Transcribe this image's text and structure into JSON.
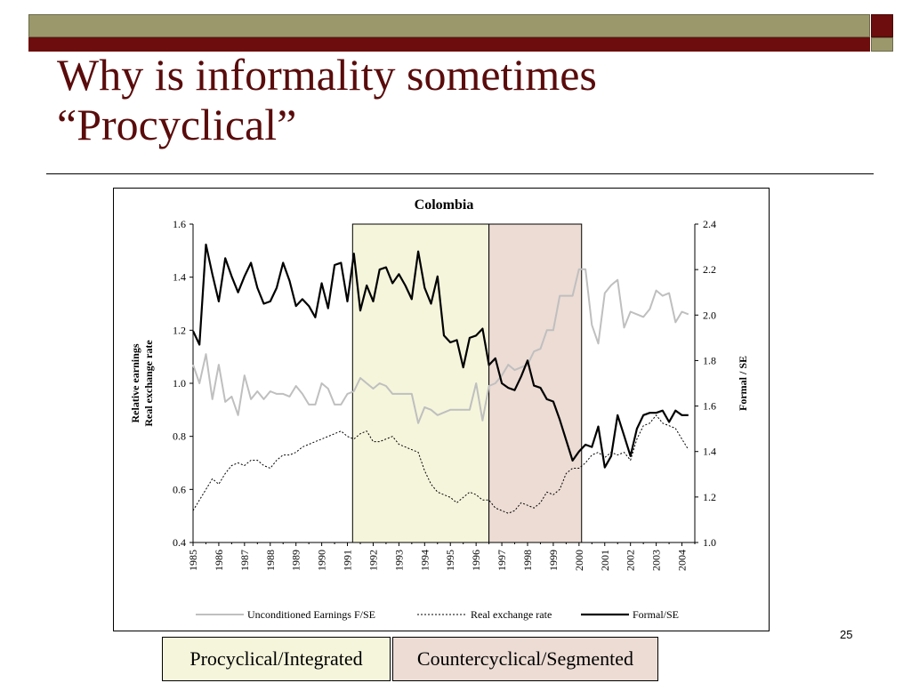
{
  "slide": {
    "title_line1": "Why is informality sometimes",
    "title_line2": "“Procyclical”",
    "page_number": "25",
    "box_labels": [
      "Procyclical/Integrated",
      "Countercyclical/Segmented"
    ]
  },
  "colors": {
    "title": "#5a0b0b",
    "band_olive": "#9b996c",
    "band_red": "#6d0d0d",
    "procyclical_shade": "#f5f5dc",
    "countercyclical_shade": "#ecdcd4",
    "earnings_line": "#bfbfbf",
    "exchange_line": "#000000",
    "formal_line": "#000000"
  },
  "chart_data": {
    "type": "line",
    "title": "Colombia",
    "ylabel_left": [
      "Relative earnings",
      "Real exchange rate"
    ],
    "ylabel_right": "Formal / SE",
    "ylim_left": [
      0.4,
      1.6
    ],
    "ylim_right": [
      1.0,
      2.4
    ],
    "yticks_left": [
      "0.4",
      "0.6",
      "0.8",
      "1.0",
      "1.2",
      "1.4",
      "1.6"
    ],
    "yticks_right": [
      "1.0",
      "1.2",
      "1.4",
      "1.6",
      "1.8",
      "2.0",
      "2.2",
      "2.4"
    ],
    "x_ticks": [
      "1985",
      "1986",
      "1987",
      "1988",
      "1989",
      "1990",
      "1991",
      "1992",
      "1993",
      "1994",
      "1995",
      "1996",
      "1997",
      "1998",
      "1999",
      "2000",
      "2001",
      "2002",
      "2003",
      "2004"
    ],
    "x_range": [
      1985.0,
      2004.5
    ],
    "legend_position": "bottom",
    "shaded_regions": [
      {
        "label": "Procyclical/Integrated",
        "start": 1991.2,
        "end": 1996.5
      },
      {
        "label": "Countercyclical/Segmented",
        "start": 1996.5,
        "end": 2000.1
      }
    ],
    "series": [
      {
        "name": "Unconditioned Earnings F/SE",
        "axis": "left",
        "style": "gray",
        "x": [
          1985.0,
          1985.25,
          1985.5,
          1985.75,
          1986.0,
          1986.25,
          1986.5,
          1986.75,
          1987.0,
          1987.25,
          1987.5,
          1987.75,
          1988.0,
          1988.25,
          1988.5,
          1988.75,
          1989.0,
          1989.25,
          1989.5,
          1989.75,
          1990.0,
          1990.25,
          1990.5,
          1990.75,
          1991.0,
          1991.25,
          1991.5,
          1991.75,
          1992.0,
          1992.25,
          1992.5,
          1992.75,
          1993.0,
          1993.25,
          1993.5,
          1993.75,
          1994.0,
          1994.25,
          1994.5,
          1994.75,
          1995.0,
          1995.25,
          1995.5,
          1995.75,
          1996.0,
          1996.25,
          1996.5,
          1996.75,
          1997.0,
          1997.25,
          1997.5,
          1997.75,
          1998.0,
          1998.25,
          1998.5,
          1998.75,
          1999.0,
          1999.25,
          1999.5,
          1999.75,
          2000.0,
          2000.25,
          2000.5,
          2000.75,
          2001.0,
          2001.25,
          2001.5,
          2001.75,
          2002.0,
          2002.25,
          2002.5,
          2002.75,
          2003.0,
          2003.25,
          2003.5,
          2003.75,
          2004.0,
          2004.25
        ],
        "values": [
          1.07,
          1.0,
          1.11,
          0.94,
          1.07,
          0.93,
          0.95,
          0.88,
          1.03,
          0.94,
          0.97,
          0.94,
          0.97,
          0.96,
          0.96,
          0.95,
          0.99,
          0.96,
          0.92,
          0.92,
          1.0,
          0.98,
          0.92,
          0.92,
          0.96,
          0.97,
          1.02,
          1.0,
          0.98,
          1.0,
          0.99,
          0.96,
          0.96,
          0.96,
          0.96,
          0.85,
          0.91,
          0.9,
          0.88,
          0.89,
          0.9,
          0.9,
          0.9,
          0.9,
          1.0,
          0.86,
          0.99,
          1.0,
          1.03,
          1.07,
          1.05,
          1.06,
          1.07,
          1.12,
          1.13,
          1.2,
          1.2,
          1.33,
          1.33,
          1.33,
          1.43,
          1.43,
          1.22,
          1.15,
          1.34,
          1.37,
          1.39,
          1.21,
          1.27,
          1.26,
          1.25,
          1.28,
          1.35,
          1.33,
          1.34,
          1.23,
          1.27,
          1.26
        ]
      },
      {
        "name": "Real exchange rate",
        "axis": "left",
        "style": "dotted",
        "x": [
          1985.0,
          1985.25,
          1985.5,
          1985.75,
          1986.0,
          1986.25,
          1986.5,
          1986.75,
          1987.0,
          1987.25,
          1987.5,
          1987.75,
          1988.0,
          1988.25,
          1988.5,
          1988.75,
          1989.0,
          1989.25,
          1989.5,
          1989.75,
          1990.0,
          1990.25,
          1990.5,
          1990.75,
          1991.0,
          1991.25,
          1991.5,
          1991.75,
          1992.0,
          1992.25,
          1992.5,
          1992.75,
          1993.0,
          1993.25,
          1993.5,
          1993.75,
          1994.0,
          1994.25,
          1994.5,
          1994.75,
          1995.0,
          1995.25,
          1995.5,
          1995.75,
          1996.0,
          1996.25,
          1996.5,
          1996.75,
          1997.0,
          1997.25,
          1997.5,
          1997.75,
          1998.0,
          1998.25,
          1998.5,
          1998.75,
          1999.0,
          1999.25,
          1999.5,
          1999.75,
          2000.0,
          2000.25,
          2000.5,
          2000.75,
          2001.0,
          2001.25,
          2001.5,
          2001.75,
          2002.0,
          2002.25,
          2002.5,
          2002.75,
          2003.0,
          2003.25,
          2003.5,
          2003.75,
          2004.0,
          2004.25
        ],
        "values": [
          0.52,
          0.56,
          0.6,
          0.64,
          0.62,
          0.66,
          0.69,
          0.7,
          0.69,
          0.71,
          0.71,
          0.69,
          0.68,
          0.71,
          0.73,
          0.73,
          0.74,
          0.76,
          0.77,
          0.78,
          0.79,
          0.8,
          0.81,
          0.82,
          0.8,
          0.79,
          0.81,
          0.82,
          0.78,
          0.78,
          0.79,
          0.8,
          0.77,
          0.76,
          0.75,
          0.74,
          0.67,
          0.62,
          0.59,
          0.58,
          0.57,
          0.55,
          0.57,
          0.59,
          0.58,
          0.56,
          0.56,
          0.53,
          0.52,
          0.51,
          0.52,
          0.55,
          0.54,
          0.53,
          0.55,
          0.59,
          0.58,
          0.6,
          0.66,
          0.68,
          0.68,
          0.7,
          0.73,
          0.74,
          0.72,
          0.74,
          0.73,
          0.74,
          0.71,
          0.79,
          0.84,
          0.85,
          0.88,
          0.85,
          0.84,
          0.83,
          0.79,
          0.75
        ]
      },
      {
        "name": "Formal/SE",
        "axis": "right",
        "style": "black",
        "x": [
          1985.0,
          1985.25,
          1985.5,
          1985.75,
          1986.0,
          1986.25,
          1986.5,
          1986.75,
          1987.0,
          1987.25,
          1987.5,
          1987.75,
          1988.0,
          1988.25,
          1988.5,
          1988.75,
          1989.0,
          1989.25,
          1989.5,
          1989.75,
          1990.0,
          1990.25,
          1990.5,
          1990.75,
          1991.0,
          1991.25,
          1991.5,
          1991.75,
          1992.0,
          1992.25,
          1992.5,
          1992.75,
          1993.0,
          1993.25,
          1993.5,
          1993.75,
          1994.0,
          1994.25,
          1994.5,
          1994.75,
          1995.0,
          1995.25,
          1995.5,
          1995.75,
          1996.0,
          1996.25,
          1996.5,
          1996.75,
          1997.0,
          1997.25,
          1997.5,
          1997.75,
          1998.0,
          1998.25,
          1998.5,
          1998.75,
          1999.0,
          1999.25,
          1999.5,
          1999.75,
          2000.0,
          2000.25,
          2000.5,
          2000.75,
          2001.0,
          2001.25,
          2001.5,
          2001.75,
          2002.0,
          2002.25,
          2002.5,
          2002.75,
          2003.0,
          2003.25,
          2003.5,
          2003.75,
          2004.0,
          2004.25
        ],
        "values": [
          1.93,
          1.87,
          2.31,
          2.18,
          2.06,
          2.25,
          2.17,
          2.1,
          2.17,
          2.23,
          2.12,
          2.05,
          2.06,
          2.12,
          2.23,
          2.15,
          2.04,
          2.07,
          2.04,
          1.99,
          2.14,
          2.03,
          2.22,
          2.23,
          2.06,
          2.27,
          2.02,
          2.13,
          2.06,
          2.2,
          2.21,
          2.14,
          2.18,
          2.13,
          2.07,
          2.28,
          2.12,
          2.05,
          2.17,
          1.91,
          1.88,
          1.89,
          1.77,
          1.9,
          1.91,
          1.94,
          1.78,
          1.81,
          1.7,
          1.68,
          1.67,
          1.73,
          1.8,
          1.69,
          1.68,
          1.63,
          1.62,
          1.54,
          1.45,
          1.36,
          1.4,
          1.43,
          1.42,
          1.51,
          1.33,
          1.38,
          1.56,
          1.47,
          1.38,
          1.5,
          1.56,
          1.57,
          1.57,
          1.58,
          1.53,
          1.58,
          1.56,
          1.56
        ]
      }
    ]
  }
}
